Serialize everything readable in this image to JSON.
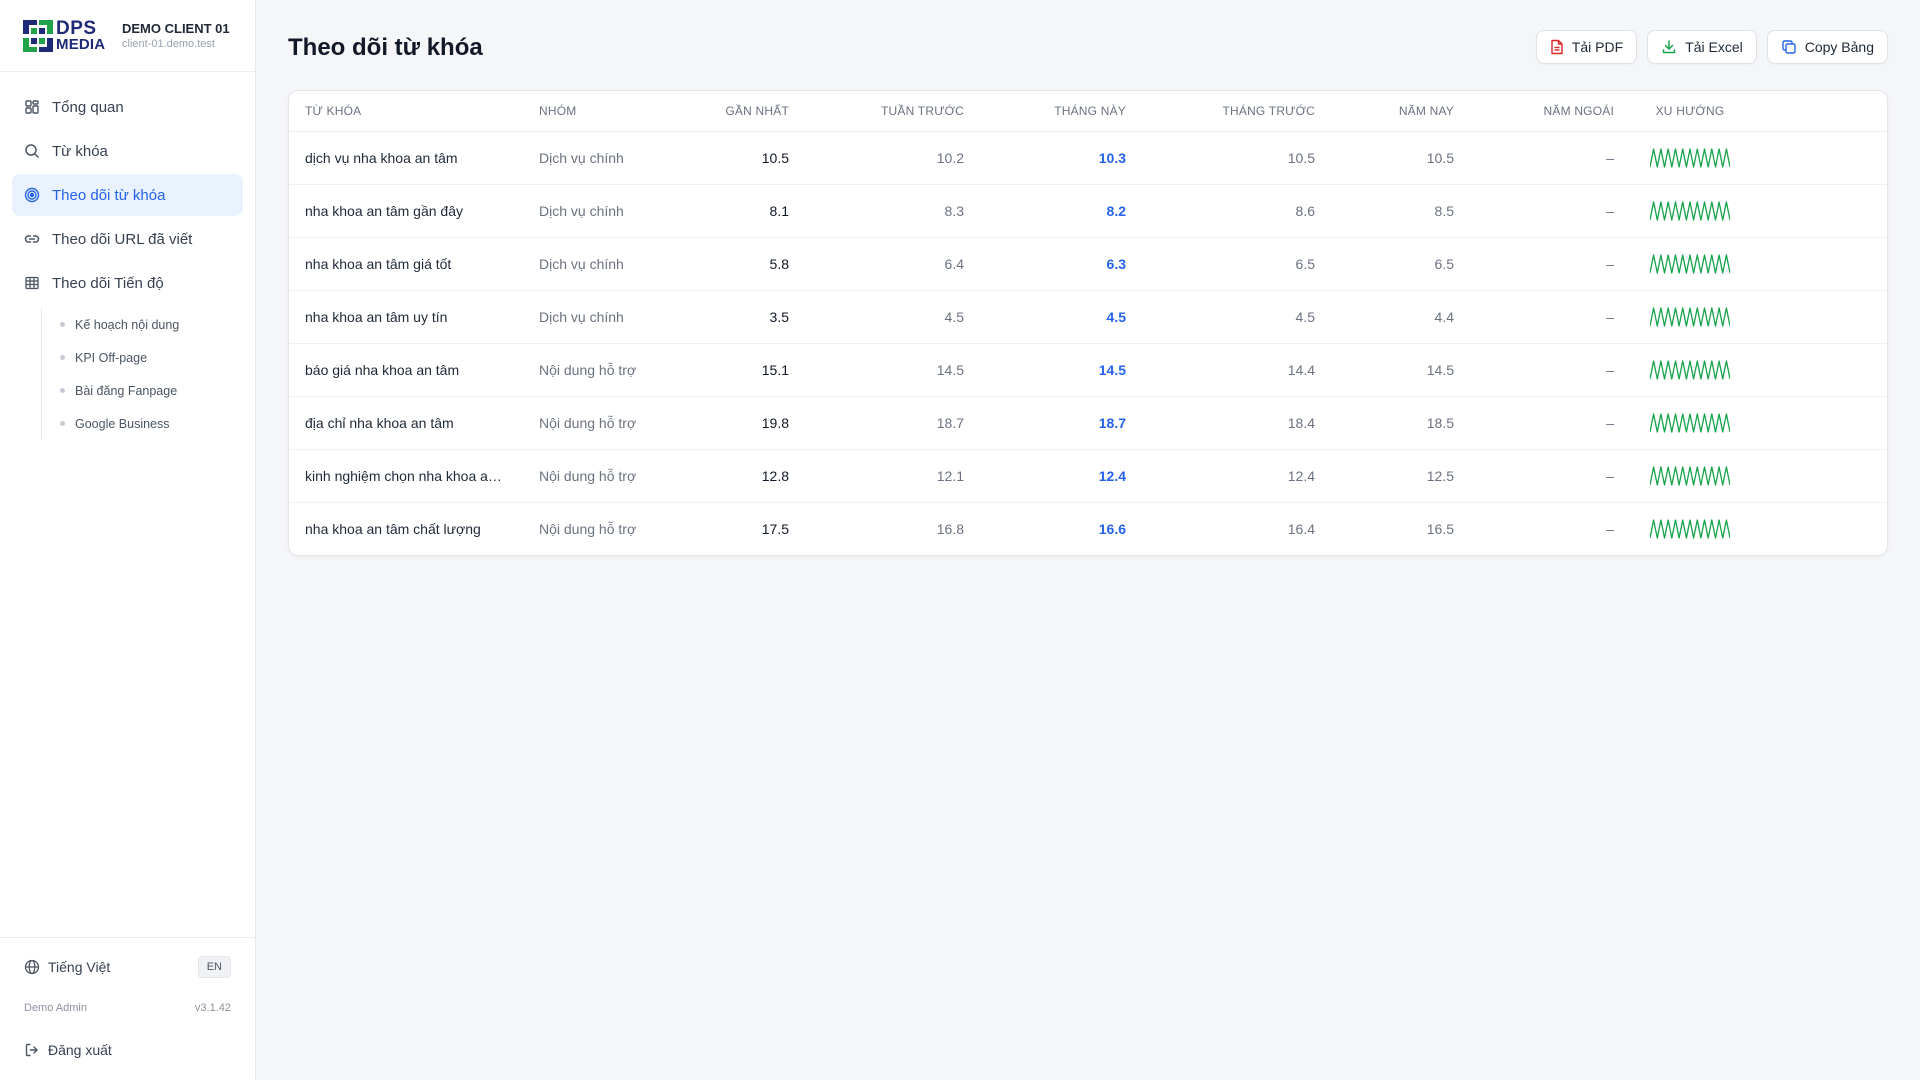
{
  "sidebar": {
    "logo": {
      "line1": "DPS",
      "line2": "MEDIA"
    },
    "client_name": "DEMO CLIENT 01",
    "client_host": "client-01.demo.test",
    "nav": [
      {
        "label": "Tổng quan",
        "icon": "grid-icon"
      },
      {
        "label": "Từ khóa",
        "icon": "search-icon"
      },
      {
        "label": "Theo dõi từ khóa",
        "icon": "target-icon",
        "active": true
      },
      {
        "label": "Theo dõi URL đã viết",
        "icon": "link-icon"
      },
      {
        "label": "Theo dõi Tiến độ",
        "icon": "table-icon"
      }
    ],
    "subnav": [
      "Kế hoạch nội dung",
      "KPI Off-page",
      "Bài đăng Fanpage",
      "Google Business"
    ],
    "language_label": "Tiếng Việt",
    "language_toggle": "EN",
    "user": "Demo Admin",
    "version": "v3.1.42",
    "logout": "Đăng xuất"
  },
  "header": {
    "title": "Theo dõi từ khóa",
    "pdf_label": "Tải PDF",
    "excel_label": "Tải Excel",
    "copy_label": "Copy Bảng"
  },
  "table": {
    "columns": [
      "TỪ KHÓA",
      "NHÓM",
      "GẦN NHẤT",
      "TUẦN TRƯỚC",
      "THÁNG NÀY",
      "THÁNG TRƯỚC",
      "NĂM NAY",
      "NĂM NGOÁI",
      "XU HƯỚNG"
    ],
    "rows": [
      {
        "keyword": "dịch vụ nha khoa an tâm",
        "group": "Dịch vụ chính",
        "latest": "10.5",
        "last_week": "10.2",
        "this_month": "10.3",
        "last_month": "10.5",
        "this_year": "10.5",
        "last_year": "–"
      },
      {
        "keyword": "nha khoa an tâm gần đây",
        "group": "Dịch vụ chính",
        "latest": "8.1",
        "last_week": "8.3",
        "this_month": "8.2",
        "last_month": "8.6",
        "this_year": "8.5",
        "last_year": "–"
      },
      {
        "keyword": "nha khoa an tâm giá tốt",
        "group": "Dịch vụ chính",
        "latest": "5.8",
        "last_week": "6.4",
        "this_month": "6.3",
        "last_month": "6.5",
        "this_year": "6.5",
        "last_year": "–"
      },
      {
        "keyword": "nha khoa an tâm uy tín",
        "group": "Dịch vụ chính",
        "latest": "3.5",
        "last_week": "4.5",
        "this_month": "4.5",
        "last_month": "4.5",
        "this_year": "4.4",
        "last_year": "–"
      },
      {
        "keyword": "báo giá nha khoa an tâm",
        "group": "Nội dung hỗ trợ",
        "latest": "15.1",
        "last_week": "14.5",
        "this_month": "14.5",
        "last_month": "14.4",
        "this_year": "14.5",
        "last_year": "–"
      },
      {
        "keyword": "địa chỉ nha khoa an tâm",
        "group": "Nội dung hỗ trợ",
        "latest": "19.8",
        "last_week": "18.7",
        "this_month": "18.7",
        "last_month": "18.4",
        "this_year": "18.5",
        "last_year": "–"
      },
      {
        "keyword": "kinh nghiệm chọn nha khoa an tâm",
        "group": "Nội dung hỗ trợ",
        "latest": "12.8",
        "last_week": "12.1",
        "this_month": "12.4",
        "last_month": "12.4",
        "this_year": "12.5",
        "last_year": "–"
      },
      {
        "keyword": "nha khoa an tâm chất lượng",
        "group": "Nội dung hỗ trợ",
        "latest": "17.5",
        "last_week": "16.8",
        "this_month": "16.6",
        "last_month": "16.4",
        "this_year": "16.5",
        "last_year": "–"
      }
    ]
  },
  "colors": {
    "accent": "#2563eb",
    "sparkline": "#16a34a",
    "brand_navy": "#1e2a78",
    "brand_green": "#22a34a"
  }
}
